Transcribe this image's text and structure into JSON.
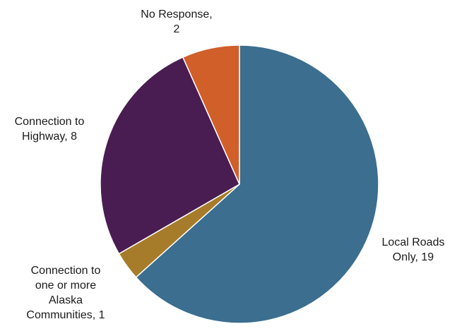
{
  "chart_data": {
    "type": "pie",
    "title": "",
    "slices": [
      {
        "label_lines": [
          "Local Roads",
          "Only, 19"
        ],
        "category": "Local Roads Only",
        "value": 19,
        "color": "#3b6e8f"
      },
      {
        "label_lines": [
          "Connection to",
          "one or more",
          "Alaska",
          "Communities, 1"
        ],
        "category": "Connection to one or more Alaska Communities",
        "value": 1,
        "color": "#a67c2a"
      },
      {
        "label_lines": [
          "Connection to",
          "Highway, 8"
        ],
        "category": "Connection to Highway",
        "value": 8,
        "color": "#4a1d52"
      },
      {
        "label_lines": [
          "No Response,",
          "2"
        ],
        "category": "No Response",
        "value": 2,
        "color": "#d05f2a"
      }
    ]
  }
}
